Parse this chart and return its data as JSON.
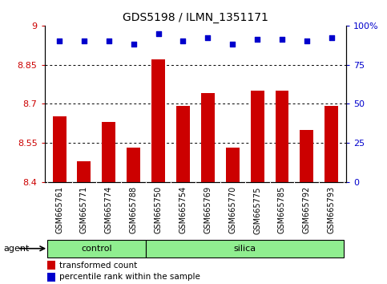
{
  "title": "GDS5198 / ILMN_1351171",
  "samples": [
    "GSM665761",
    "GSM665771",
    "GSM665774",
    "GSM665788",
    "GSM665750",
    "GSM665754",
    "GSM665769",
    "GSM665770",
    "GSM665775",
    "GSM665785",
    "GSM665792",
    "GSM665793"
  ],
  "transformed_counts": [
    8.65,
    8.48,
    8.63,
    8.53,
    8.87,
    8.69,
    8.74,
    8.53,
    8.75,
    8.75,
    8.6,
    8.69
  ],
  "percentile_ranks": [
    90,
    90,
    90,
    88,
    95,
    90,
    92,
    88,
    91,
    91,
    90,
    92
  ],
  "control_count": 4,
  "silica_count": 8,
  "ylim_left": [
    8.4,
    9.0
  ],
  "ylim_right": [
    0,
    100
  ],
  "yticks_left": [
    8.4,
    8.55,
    8.7,
    8.85,
    9.0
  ],
  "yticks_right": [
    0,
    25,
    50,
    75,
    100
  ],
  "ytick_labels_left": [
    "8.4",
    "8.55",
    "8.7",
    "8.85",
    "9"
  ],
  "ytick_labels_right": [
    "0",
    "25",
    "50",
    "75",
    "100%"
  ],
  "hgrid_values": [
    8.55,
    8.7,
    8.85
  ],
  "bar_color": "#cc0000",
  "dot_color": "#0000cc",
  "green_color": "#90EE90",
  "bg_color": "#ffffff",
  "gray_bg": "#c8c8c8",
  "agent_label": "agent",
  "control_label": "control",
  "silica_label": "silica",
  "legend_bar_label": "transformed count",
  "legend_dot_label": "percentile rank within the sample",
  "bar_width": 0.55,
  "title_fontsize": 10,
  "tick_fontsize": 8,
  "label_fontsize": 8,
  "legend_fontsize": 7.5
}
